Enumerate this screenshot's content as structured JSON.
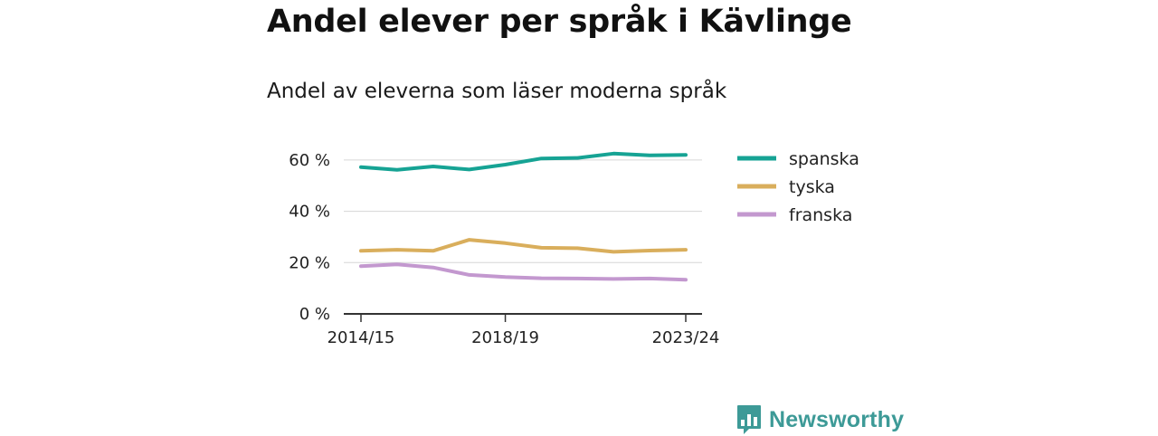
{
  "header": {
    "title": "Andel elever per språk i Kävlinge",
    "subtitle": "Andel av eleverna som läser moderna språk"
  },
  "chart_data": {
    "type": "line",
    "title": "Andel elever per språk i Kävlinge",
    "subtitle": "Andel av eleverna som läser moderna språk",
    "xlabel": "",
    "ylabel": "",
    "x": [
      "2014/15",
      "2015/16",
      "2016/17",
      "2017/18",
      "2018/19",
      "2019/20",
      "2020/21",
      "2021/22",
      "2022/23",
      "2023/24"
    ],
    "x_tick_labels": [
      "2014/15",
      "2018/19",
      "2023/24"
    ],
    "x_tick_indices": [
      0,
      4,
      9
    ],
    "y_ticks": [
      0,
      20,
      40,
      60
    ],
    "y_tick_labels": [
      "0 %",
      "20 %",
      "40 %",
      "60 %"
    ],
    "ylim": [
      0,
      65
    ],
    "grid": true,
    "legend_position": "right",
    "series": [
      {
        "name": "spanska",
        "color": "#16a394",
        "values": [
          57.2,
          56.2,
          57.5,
          56.3,
          58.2,
          60.6,
          60.8,
          62.5,
          61.8,
          62.0
        ]
      },
      {
        "name": "tyska",
        "color": "#d9ae5c",
        "values": [
          24.6,
          25.0,
          24.6,
          28.9,
          27.6,
          25.8,
          25.6,
          24.2,
          24.7,
          25.0
        ]
      },
      {
        "name": "franska",
        "color": "#c398cf",
        "values": [
          18.6,
          19.3,
          18.1,
          15.2,
          14.4,
          13.9,
          13.8,
          13.6,
          13.8,
          13.3
        ]
      }
    ]
  },
  "brand": {
    "name": "Newsworthy",
    "icon": "newsworthy-logo-icon",
    "color": "#3d9a97"
  }
}
